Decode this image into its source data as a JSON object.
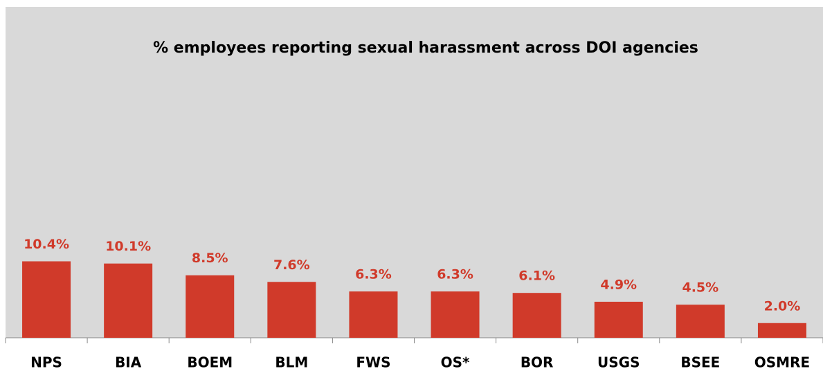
{
  "chart_data": {
    "type": "bar",
    "title": "% employees reporting sexual harassment across DOI agencies",
    "categories": [
      "NPS",
      "BIA",
      "BOEM",
      "BLM",
      "FWS",
      "OS*",
      "BOR",
      "USGS",
      "BSEE",
      "OSMRE"
    ],
    "values": [
      10.4,
      10.1,
      8.5,
      7.6,
      6.3,
      6.3,
      6.1,
      4.9,
      4.5,
      2.0
    ],
    "value_labels": [
      "10.4%",
      "10.1%",
      "8.5%",
      "7.6%",
      "6.3%",
      "6.3%",
      "6.1%",
      "4.9%",
      "4.5%",
      "2.0%"
    ],
    "color": "#d03a2a",
    "ylim": [
      0,
      45
    ]
  }
}
